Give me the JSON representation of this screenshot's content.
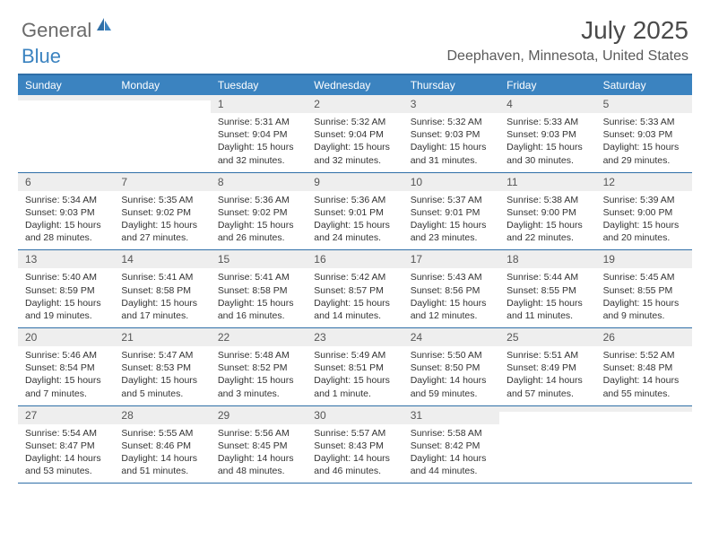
{
  "logo": {
    "general": "General",
    "blue": "Blue"
  },
  "title": "July 2025",
  "location": "Deephaven, Minnesota, United States",
  "colors": {
    "header_bg": "#3b83c0",
    "border": "#2f6fa7",
    "daynum_bg": "#eeeeee",
    "text_dark": "#333333",
    "text_muted": "#555555",
    "title_color": "#4a4a4a"
  },
  "weekdays": [
    "Sunday",
    "Monday",
    "Tuesday",
    "Wednesday",
    "Thursday",
    "Friday",
    "Saturday"
  ],
  "weeks": [
    [
      null,
      null,
      {
        "n": "1",
        "sr": "5:31 AM",
        "ss": "9:04 PM",
        "dl": "15 hours and 32 minutes."
      },
      {
        "n": "2",
        "sr": "5:32 AM",
        "ss": "9:04 PM",
        "dl": "15 hours and 32 minutes."
      },
      {
        "n": "3",
        "sr": "5:32 AM",
        "ss": "9:03 PM",
        "dl": "15 hours and 31 minutes."
      },
      {
        "n": "4",
        "sr": "5:33 AM",
        "ss": "9:03 PM",
        "dl": "15 hours and 30 minutes."
      },
      {
        "n": "5",
        "sr": "5:33 AM",
        "ss": "9:03 PM",
        "dl": "15 hours and 29 minutes."
      }
    ],
    [
      {
        "n": "6",
        "sr": "5:34 AM",
        "ss": "9:03 PM",
        "dl": "15 hours and 28 minutes."
      },
      {
        "n": "7",
        "sr": "5:35 AM",
        "ss": "9:02 PM",
        "dl": "15 hours and 27 minutes."
      },
      {
        "n": "8",
        "sr": "5:36 AM",
        "ss": "9:02 PM",
        "dl": "15 hours and 26 minutes."
      },
      {
        "n": "9",
        "sr": "5:36 AM",
        "ss": "9:01 PM",
        "dl": "15 hours and 24 minutes."
      },
      {
        "n": "10",
        "sr": "5:37 AM",
        "ss": "9:01 PM",
        "dl": "15 hours and 23 minutes."
      },
      {
        "n": "11",
        "sr": "5:38 AM",
        "ss": "9:00 PM",
        "dl": "15 hours and 22 minutes."
      },
      {
        "n": "12",
        "sr": "5:39 AM",
        "ss": "9:00 PM",
        "dl": "15 hours and 20 minutes."
      }
    ],
    [
      {
        "n": "13",
        "sr": "5:40 AM",
        "ss": "8:59 PM",
        "dl": "15 hours and 19 minutes."
      },
      {
        "n": "14",
        "sr": "5:41 AM",
        "ss": "8:58 PM",
        "dl": "15 hours and 17 minutes."
      },
      {
        "n": "15",
        "sr": "5:41 AM",
        "ss": "8:58 PM",
        "dl": "15 hours and 16 minutes."
      },
      {
        "n": "16",
        "sr": "5:42 AM",
        "ss": "8:57 PM",
        "dl": "15 hours and 14 minutes."
      },
      {
        "n": "17",
        "sr": "5:43 AM",
        "ss": "8:56 PM",
        "dl": "15 hours and 12 minutes."
      },
      {
        "n": "18",
        "sr": "5:44 AM",
        "ss": "8:55 PM",
        "dl": "15 hours and 11 minutes."
      },
      {
        "n": "19",
        "sr": "5:45 AM",
        "ss": "8:55 PM",
        "dl": "15 hours and 9 minutes."
      }
    ],
    [
      {
        "n": "20",
        "sr": "5:46 AM",
        "ss": "8:54 PM",
        "dl": "15 hours and 7 minutes."
      },
      {
        "n": "21",
        "sr": "5:47 AM",
        "ss": "8:53 PM",
        "dl": "15 hours and 5 minutes."
      },
      {
        "n": "22",
        "sr": "5:48 AM",
        "ss": "8:52 PM",
        "dl": "15 hours and 3 minutes."
      },
      {
        "n": "23",
        "sr": "5:49 AM",
        "ss": "8:51 PM",
        "dl": "15 hours and 1 minute."
      },
      {
        "n": "24",
        "sr": "5:50 AM",
        "ss": "8:50 PM",
        "dl": "14 hours and 59 minutes."
      },
      {
        "n": "25",
        "sr": "5:51 AM",
        "ss": "8:49 PM",
        "dl": "14 hours and 57 minutes."
      },
      {
        "n": "26",
        "sr": "5:52 AM",
        "ss": "8:48 PM",
        "dl": "14 hours and 55 minutes."
      }
    ],
    [
      {
        "n": "27",
        "sr": "5:54 AM",
        "ss": "8:47 PM",
        "dl": "14 hours and 53 minutes."
      },
      {
        "n": "28",
        "sr": "5:55 AM",
        "ss": "8:46 PM",
        "dl": "14 hours and 51 minutes."
      },
      {
        "n": "29",
        "sr": "5:56 AM",
        "ss": "8:45 PM",
        "dl": "14 hours and 48 minutes."
      },
      {
        "n": "30",
        "sr": "5:57 AM",
        "ss": "8:43 PM",
        "dl": "14 hours and 46 minutes."
      },
      {
        "n": "31",
        "sr": "5:58 AM",
        "ss": "8:42 PM",
        "dl": "14 hours and 44 minutes."
      },
      null,
      null
    ]
  ]
}
